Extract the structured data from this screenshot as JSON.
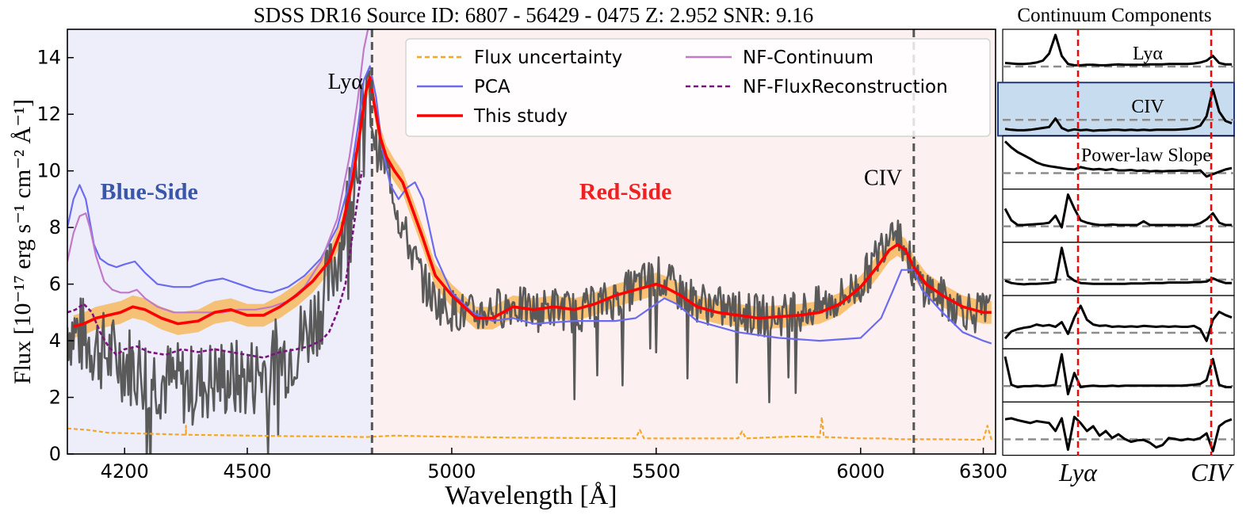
{
  "figure_title": "SDSS DR16 Source ID:   6807 - 56429 - 0475    Z: 2.952    SNR: 9.16",
  "colors": {
    "blue_bg": "#eeeefb",
    "red_bg": "#fdf0f0",
    "flux": "#5a5a5a",
    "flux_unc": "#f5a623",
    "pca": "#6b6bef",
    "nf_cont": "#c07ac7",
    "nf_recon": "#7a1380",
    "this_study": "#ff0000",
    "band": "#f6b24a",
    "ref_line": "#555555",
    "comp_highlight": "#c7dcef"
  },
  "chart_data": [
    {
      "type": "line",
      "title": "",
      "xlabel": "Wavelength [Å]",
      "ylabel": "Flux [10⁻¹⁷ erg s⁻¹ cm⁻² Å⁻¹]",
      "xlim": [
        4060,
        6330
      ],
      "ylim": [
        0,
        15
      ],
      "xticks": [
        4200,
        4500,
        5000,
        5500,
        6000,
        6300
      ],
      "yticks": [
        0,
        2,
        4,
        6,
        8,
        10,
        12,
        14
      ],
      "regions": [
        {
          "label": "Blue-Side",
          "x": [
            4060,
            4805
          ],
          "color": "#3a56a8"
        },
        {
          "label": "Red-Side",
          "x": [
            4805,
            6330
          ],
          "color": "#ee2020"
        }
      ],
      "vlines": [
        4805,
        6130
      ],
      "annotations": [
        {
          "text": "Lyα",
          "x": 4740,
          "y": 12.9
        },
        {
          "text": "CIV",
          "x": 6055,
          "y": 9.5
        }
      ],
      "legend_loc": "top-right",
      "series": [
        {
          "name": "Flux",
          "legend": false,
          "x": [
            4060,
            4110,
            4160,
            4200,
            4230,
            4260,
            4300,
            4330,
            4360,
            4400,
            4440,
            4480,
            4520,
            4560,
            4600,
            4640,
            4680,
            4720,
            4750,
            4770,
            4785,
            4795,
            4805,
            4815,
            4830,
            4850,
            4870,
            4900,
            4930,
            4960,
            5000,
            5050,
            5100,
            5150,
            5200,
            5250,
            5300,
            5350,
            5400,
            5450,
            5500,
            5550,
            5600,
            5650,
            5700,
            5750,
            5800,
            5850,
            5900,
            5950,
            6000,
            6030,
            6060,
            6080,
            6100,
            6120,
            6140,
            6170,
            6200,
            6240,
            6280,
            6320
          ],
          "y": [
            4.5,
            4.0,
            3.5,
            3.3,
            3.0,
            2.8,
            2.6,
            2.5,
            2.4,
            2.6,
            2.7,
            2.6,
            2.8,
            3.2,
            3.5,
            4.2,
            5.2,
            7.0,
            9.0,
            10.8,
            12.2,
            12.6,
            11.8,
            10.8,
            10.4,
            9.8,
            8.4,
            7.2,
            6.1,
            5.4,
            5.1,
            4.9,
            5.1,
            5.3,
            5.0,
            5.2,
            5.0,
            5.2,
            5.5,
            5.9,
            6.3,
            5.8,
            5.4,
            5.2,
            5.0,
            4.9,
            4.9,
            5.0,
            5.2,
            5.5,
            6.0,
            6.7,
            7.6,
            8.3,
            7.6,
            6.8,
            6.1,
            5.8,
            5.5,
            5.2,
            5.0,
            5.0
          ]
        },
        {
          "name": "Flux uncertainty",
          "x": [
            4060,
            4110,
            4160,
            4250,
            4350,
            4350,
            4350,
            4450,
            4600,
            4700,
            4790,
            4860,
            4950,
            5050,
            5150,
            5250,
            5350,
            5450,
            5460,
            5470,
            5550,
            5650,
            5700,
            5710,
            5720,
            5800,
            5850,
            5900,
            5905,
            5910,
            5950,
            6000,
            6050,
            6100,
            6200,
            6300,
            6310,
            6320
          ],
          "y": [
            0.9,
            0.85,
            0.75,
            0.72,
            0.68,
            1.0,
            0.68,
            0.66,
            0.63,
            0.62,
            0.6,
            0.65,
            0.62,
            0.6,
            0.58,
            0.57,
            0.56,
            0.55,
            0.85,
            0.55,
            0.55,
            0.55,
            0.55,
            0.8,
            0.55,
            0.6,
            0.62,
            0.6,
            1.3,
            0.6,
            0.58,
            0.55,
            0.55,
            0.52,
            0.52,
            0.5,
            1.0,
            0.5
          ]
        },
        {
          "name": "PCA",
          "x": [
            4060,
            4075,
            4090,
            4105,
            4115,
            4125,
            4140,
            4160,
            4180,
            4200,
            4225,
            4250,
            4280,
            4320,
            4360,
            4400,
            4440,
            4480,
            4520,
            4560,
            4600,
            4640,
            4680,
            4720,
            4750,
            4770,
            4785,
            4800,
            4815,
            4830,
            4850,
            4870,
            4890,
            4910,
            4930,
            4960,
            5000,
            5050,
            5100,
            5150,
            5200,
            5300,
            5400,
            5450,
            5500,
            5520,
            5550,
            5600,
            5700,
            5800,
            5900,
            6000,
            6050,
            6080,
            6100,
            6130,
            6150,
            6200,
            6250,
            6300,
            6320
          ],
          "y": [
            8.0,
            9.0,
            9.5,
            9.0,
            8.2,
            7.4,
            6.9,
            6.7,
            6.6,
            6.7,
            6.8,
            6.4,
            6.0,
            5.9,
            5.9,
            6.1,
            6.2,
            6.0,
            5.8,
            5.7,
            5.9,
            6.3,
            6.9,
            8.0,
            9.6,
            11.5,
            13.2,
            13.7,
            12.6,
            10.8,
            9.5,
            9.0,
            9.4,
            9.6,
            9.0,
            7.0,
            5.7,
            5.0,
            4.7,
            4.8,
            4.6,
            4.7,
            4.7,
            4.8,
            5.3,
            5.5,
            5.3,
            4.7,
            4.3,
            4.1,
            4.0,
            4.1,
            4.8,
            5.8,
            6.5,
            6.5,
            5.8,
            5.0,
            4.3,
            4.0,
            3.9
          ]
        },
        {
          "name": "NF-Continuum",
          "x": [
            4060,
            4075,
            4090,
            4105,
            4115,
            4130,
            4150,
            4170,
            4190,
            4210,
            4230,
            4250,
            4280,
            4320,
            4360,
            4400,
            4440,
            4480,
            4520,
            4560,
            4600,
            4640,
            4680,
            4720,
            4750,
            4770,
            4785,
            4795,
            4805
          ],
          "y": [
            6.8,
            7.8,
            8.4,
            8.5,
            8.0,
            7.0,
            6.1,
            5.8,
            5.7,
            5.7,
            5.8,
            5.5,
            5.2,
            5.0,
            5.0,
            5.0,
            5.0,
            5.1,
            5.1,
            5.2,
            5.4,
            5.9,
            6.8,
            8.3,
            10.5,
            12.5,
            14.3,
            15.0,
            15.0
          ]
        },
        {
          "name": "NF-FluxReconstruction",
          "x": [
            4060,
            4080,
            4100,
            4120,
            4140,
            4160,
            4180,
            4200,
            4230,
            4260,
            4300,
            4340,
            4380,
            4420,
            4460,
            4500,
            4540,
            4580,
            4620,
            4650,
            4680,
            4700,
            4720,
            4740,
            4750,
            4760,
            4770,
            4780
          ],
          "y": [
            5.0,
            5.1,
            5.3,
            5.0,
            4.3,
            3.8,
            3.5,
            3.7,
            3.8,
            3.6,
            3.5,
            3.7,
            3.6,
            3.7,
            3.6,
            3.5,
            3.4,
            3.6,
            3.7,
            3.8,
            4.0,
            4.3,
            5.0,
            6.0,
            7.0,
            8.0,
            9.0,
            10.0
          ]
        },
        {
          "name": "This study",
          "x": [
            4075,
            4100,
            4130,
            4160,
            4190,
            4220,
            4250,
            4290,
            4330,
            4380,
            4420,
            4460,
            4500,
            4540,
            4580,
            4620,
            4660,
            4700,
            4730,
            4755,
            4775,
            4790,
            4800,
            4810,
            4825,
            4840,
            4860,
            4880,
            4900,
            4930,
            4960,
            5000,
            5030,
            5060,
            5100,
            5150,
            5200,
            5250,
            5300,
            5350,
            5400,
            5450,
            5500,
            5520,
            5560,
            5600,
            5650,
            5700,
            5750,
            5800,
            5850,
            5900,
            5950,
            6000,
            6040,
            6070,
            6090,
            6110,
            6130,
            6160,
            6200,
            6250,
            6300,
            6320
          ],
          "y": [
            4.5,
            4.6,
            4.8,
            4.9,
            5.0,
            5.2,
            5.1,
            4.8,
            4.6,
            4.7,
            5.0,
            5.1,
            4.9,
            4.9,
            5.2,
            5.6,
            6.1,
            6.8,
            7.9,
            9.5,
            11.3,
            12.8,
            13.3,
            12.4,
            11.2,
            10.5,
            10.0,
            9.6,
            8.8,
            7.6,
            6.3,
            5.6,
            5.2,
            4.8,
            4.8,
            5.2,
            5.1,
            5.2,
            5.1,
            5.3,
            5.6,
            5.8,
            6.0,
            5.9,
            5.6,
            5.2,
            5.0,
            4.9,
            4.8,
            4.85,
            4.9,
            5.0,
            5.3,
            5.9,
            6.6,
            7.2,
            7.4,
            7.2,
            6.6,
            6.0,
            5.6,
            5.2,
            5.0,
            5.0
          ]
        }
      ],
      "legend": [
        "Flux uncertainty",
        "PCA",
        "This study",
        "NF-Continuum",
        "NF-FluxReconstruction"
      ]
    },
    {
      "type": "line",
      "title": "Continuum Components",
      "xticks": [
        "Lyα",
        "CIV"
      ],
      "highlighted_component": 1,
      "components": [
        {
          "label": "Lyα",
          "y": [
            0.35,
            0.34,
            0.33,
            0.33,
            0.34,
            0.36,
            0.4,
            0.55,
            0.95,
            0.5,
            0.33,
            0.3,
            0.3,
            0.31,
            0.31,
            0.3,
            0.3,
            0.31,
            0.32,
            0.31,
            0.31,
            0.31,
            0.31,
            0.32,
            0.32,
            0.32,
            0.33,
            0.33,
            0.33,
            0.33,
            0.34,
            0.36,
            0.4,
            0.5,
            0.35,
            0.32,
            0.32
          ]
        },
        {
          "label": "CIV",
          "y": [
            0.08,
            0.06,
            0.05,
            0.05,
            0.06,
            0.08,
            0.1,
            0.12,
            0.3,
            0.1,
            0.04,
            0.07,
            0.05,
            0.06,
            0.04,
            0.05,
            0.05,
            0.06,
            0.06,
            0.05,
            0.06,
            0.05,
            0.06,
            0.05,
            0.06,
            0.06,
            0.06,
            0.06,
            0.07,
            0.08,
            0.1,
            0.15,
            0.35,
            0.92,
            0.45,
            0.25,
            0.2
          ]
        },
        {
          "label": "Power-law  Slope",
          "y": [
            0.95,
            0.82,
            0.72,
            0.65,
            0.58,
            0.5,
            0.45,
            0.42,
            0.4,
            0.38,
            0.36,
            0.35,
            0.4,
            0.37,
            0.35,
            0.36,
            0.34,
            0.36,
            0.33,
            0.33,
            0.34,
            0.32,
            0.33,
            0.31,
            0.32,
            0.31,
            0.32,
            0.32,
            0.33,
            0.32,
            0.32,
            0.33,
            0.2,
            0.25,
            0.3,
            0.35,
            0.38
          ]
        },
        {
          "label": "",
          "y": [
            0.65,
            0.4,
            0.3,
            0.3,
            0.31,
            0.32,
            0.33,
            0.35,
            0.5,
            0.25,
            0.95,
            0.65,
            0.4,
            0.35,
            0.32,
            0.3,
            0.3,
            0.31,
            0.3,
            0.3,
            0.3,
            0.3,
            0.38,
            0.3,
            0.3,
            0.3,
            0.3,
            0.3,
            0.3,
            0.3,
            0.3,
            0.34,
            0.42,
            0.55,
            0.35,
            0.3,
            0.3
          ]
        },
        {
          "label": "",
          "y": [
            0.25,
            0.2,
            0.18,
            0.17,
            0.18,
            0.18,
            0.19,
            0.2,
            0.22,
            0.95,
            0.35,
            0.25,
            0.2,
            0.19,
            0.18,
            0.18,
            0.18,
            0.18,
            0.18,
            0.18,
            0.19,
            0.19,
            0.19,
            0.2,
            0.2,
            0.2,
            0.21,
            0.21,
            0.21,
            0.21,
            0.22,
            0.22,
            0.23,
            0.3,
            0.24,
            0.2,
            0.2
          ]
        },
        {
          "label": "",
          "y": [
            0.15,
            0.3,
            0.35,
            0.38,
            0.4,
            0.45,
            0.42,
            0.44,
            0.4,
            0.5,
            0.25,
            0.6,
            0.85,
            0.55,
            0.45,
            0.42,
            0.43,
            0.4,
            0.41,
            0.4,
            0.41,
            0.4,
            0.42,
            0.41,
            0.4,
            0.41,
            0.4,
            0.41,
            0.4,
            0.4,
            0.42,
            0.35,
            0.1,
            0.55,
            0.72,
            0.65,
            0.6
          ]
        },
        {
          "label": "",
          "y": [
            0.9,
            0.3,
            0.25,
            0.27,
            0.27,
            0.28,
            0.27,
            0.28,
            0.3,
            0.95,
            0.1,
            0.55,
            0.25,
            0.27,
            0.28,
            0.27,
            0.27,
            0.28,
            0.27,
            0.28,
            0.28,
            0.28,
            0.28,
            0.28,
            0.28,
            0.28,
            0.28,
            0.28,
            0.28,
            0.29,
            0.3,
            0.32,
            0.4,
            0.85,
            0.3,
            0.25,
            0.25
          ]
        },
        {
          "label": "",
          "y": [
            0.7,
            0.72,
            0.68,
            0.65,
            0.62,
            0.66,
            0.64,
            0.62,
            0.45,
            0.72,
            0.05,
            0.75,
            0.62,
            0.45,
            0.55,
            0.35,
            0.45,
            0.3,
            0.38,
            0.28,
            0.22,
            0.25,
            0.26,
            0.2,
            0.1,
            0.15,
            0.3,
            0.28,
            0.25,
            0.28,
            0.26,
            0.3,
            0.4,
            0.02,
            0.55,
            0.65,
            0.7
          ]
        }
      ]
    }
  ]
}
